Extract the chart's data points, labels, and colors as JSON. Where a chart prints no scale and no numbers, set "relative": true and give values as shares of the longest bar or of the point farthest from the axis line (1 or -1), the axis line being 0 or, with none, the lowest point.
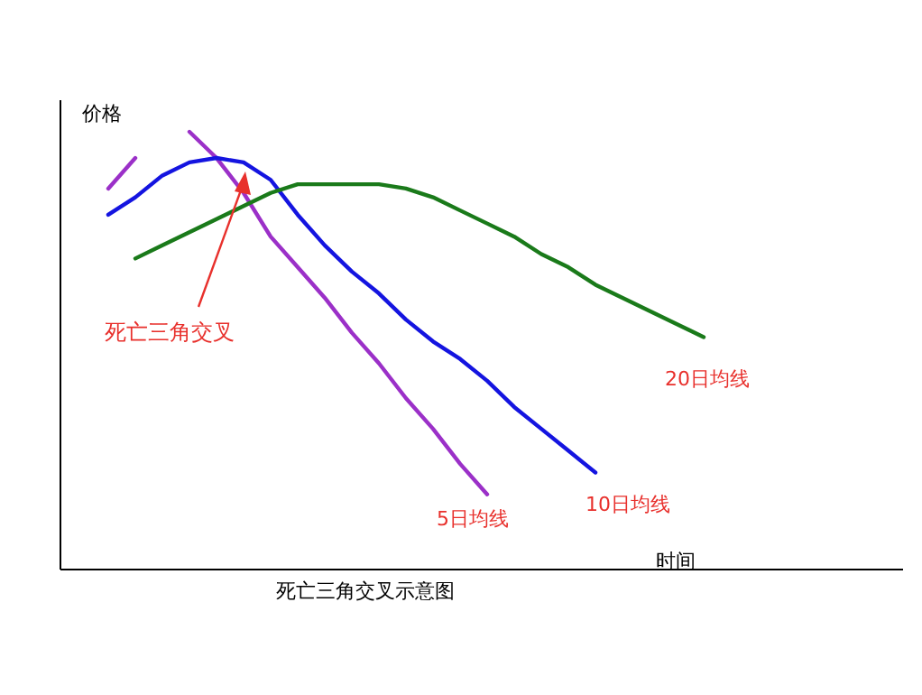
{
  "chart_data": {
    "type": "line",
    "relative": true,
    "title": "死亡三角交叉示意图",
    "xlabel": "时间",
    "ylabel": "价格",
    "line_style": "solid",
    "categories": [
      null,
      null,
      null,
      null,
      null,
      null,
      null,
      null,
      null,
      null,
      null,
      null,
      null,
      null,
      null,
      null,
      null,
      null,
      null,
      null,
      null,
      null,
      null,
      null
    ],
    "series": [
      {
        "name": "5日均线",
        "color": "#9b30c8",
        "values": [
          null,
          0.87,
          0.94,
          null,
          1.0,
          0.94,
          0.86,
          0.76,
          0.69,
          0.62,
          0.54,
          0.47,
          0.39,
          0.32,
          0.24,
          0.17,
          null,
          null,
          null,
          null,
          null,
          null,
          null,
          null
        ]
      },
      {
        "name": "10日均线",
        "color": "#1414e0",
        "values": [
          null,
          0.81,
          0.85,
          0.9,
          0.93,
          0.94,
          0.93,
          0.89,
          0.81,
          0.74,
          0.68,
          0.63,
          0.57,
          0.52,
          0.48,
          0.43,
          0.37,
          0.32,
          0.27,
          0.22,
          null,
          null,
          null,
          null
        ]
      },
      {
        "name": "20日均线",
        "color": "#1a7a1a",
        "values": [
          null,
          null,
          0.71,
          0.74,
          0.77,
          0.8,
          0.83,
          0.86,
          0.88,
          0.88,
          0.88,
          0.88,
          0.87,
          0.85,
          0.82,
          0.79,
          0.76,
          0.72,
          0.69,
          0.65,
          0.62,
          0.59,
          0.56,
          0.53
        ]
      }
    ],
    "annotations": [
      "死亡三角交叉"
    ]
  }
}
